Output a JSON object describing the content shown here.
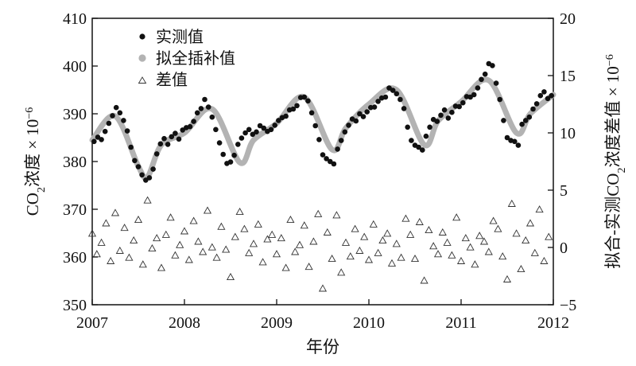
{
  "chart_data": {
    "type": "scatter",
    "xlabel": "年份",
    "ylabel_left": {
      "base": "CO",
      "sub": "2",
      "rest": "浓度 × 10",
      "sup": "−6"
    },
    "ylabel_right": {
      "pre": "拟合-实测CO",
      "sub": "2",
      "rest": "浓度差值 × 10",
      "sup": "−6"
    },
    "x_ticks": [
      "2007",
      "2008",
      "2009",
      "2010",
      "2011",
      "2012"
    ],
    "y_left_ticks": [
      "350",
      "360",
      "370",
      "380",
      "390",
      "400",
      "410"
    ],
    "y_right_ticks": [
      "−5",
      "0",
      "5",
      "10",
      "15",
      "20"
    ],
    "xlim": [
      2007,
      2012
    ],
    "ylim_left": [
      350,
      410
    ],
    "ylim_right": [
      -5,
      20
    ],
    "grid": false,
    "legend_position": "top-left",
    "legend": [
      "实测值",
      "拟全插补值",
      "差值"
    ],
    "series_colors": {
      "observed": "#111111",
      "fit": "#b3b3b3",
      "diff": "#333333"
    },
    "fit_curve": {
      "x": [
        2007.0,
        2007.25,
        2007.5,
        2007.6,
        2007.75,
        2008.0,
        2008.3,
        2008.6,
        2008.75,
        2009.0,
        2009.3,
        2009.6,
        2009.75,
        2010.0,
        2010.3,
        2010.6,
        2010.75,
        2011.0,
        2011.3,
        2011.6,
        2011.75,
        2012.0
      ],
      "y": [
        384.5,
        389.5,
        379.0,
        376.8,
        383.5,
        386.0,
        391.0,
        379.8,
        384.5,
        388.0,
        393.5,
        382.5,
        387.0,
        392.0,
        395.0,
        383.5,
        388.5,
        392.5,
        397.0,
        386.0,
        390.0,
        394.0
      ]
    },
    "observed": {
      "x": [
        2007.02,
        2007.06,
        2007.1,
        2007.14,
        2007.18,
        2007.22,
        2007.26,
        2007.3,
        2007.34,
        2007.38,
        2007.42,
        2007.46,
        2007.5,
        2007.54,
        2007.58,
        2007.62,
        2007.66,
        2007.7,
        2007.74,
        2007.78,
        2007.82,
        2007.86,
        2007.9,
        2007.94,
        2007.98,
        2008.02,
        2008.06,
        2008.1,
        2008.14,
        2008.18,
        2008.22,
        2008.26,
        2008.3,
        2008.34,
        2008.38,
        2008.42,
        2008.46,
        2008.5,
        2008.54,
        2008.58,
        2008.62,
        2008.66,
        2008.7,
        2008.74,
        2008.78,
        2008.82,
        2008.86,
        2008.9,
        2008.94,
        2008.98,
        2009.02,
        2009.06,
        2009.1,
        2009.14,
        2009.18,
        2009.22,
        2009.26,
        2009.3,
        2009.34,
        2009.38,
        2009.42,
        2009.46,
        2009.5,
        2009.54,
        2009.58,
        2009.62,
        2009.66,
        2009.7,
        2009.74,
        2009.78,
        2009.82,
        2009.86,
        2009.9,
        2009.94,
        2009.98,
        2010.02,
        2010.06,
        2010.1,
        2010.14,
        2010.18,
        2010.22,
        2010.26,
        2010.3,
        2010.34,
        2010.38,
        2010.42,
        2010.46,
        2010.5,
        2010.54,
        2010.58,
        2010.62,
        2010.66,
        2010.7,
        2010.74,
        2010.78,
        2010.82,
        2010.86,
        2010.9,
        2010.94,
        2010.98,
        2011.02,
        2011.06,
        2011.1,
        2011.14,
        2011.18,
        2011.22,
        2011.26,
        2011.3,
        2011.34,
        2011.38,
        2011.42,
        2011.46,
        2011.5,
        2011.54,
        2011.58,
        2011.62,
        2011.66,
        2011.7,
        2011.74,
        2011.78,
        2011.82,
        2011.86,
        2011.9,
        2011.94,
        2011.98
      ],
      "y": [
        384.2,
        385.1,
        384.6,
        386.3,
        388.0,
        389.6,
        391.3,
        390.2,
        388.6,
        386.4,
        383.0,
        380.2,
        378.9,
        377.2,
        376.1,
        376.6,
        378.4,
        381.6,
        383.7,
        384.8,
        383.6,
        385.2,
        385.9,
        384.7,
        386.6,
        387.1,
        387.3,
        388.4,
        390.2,
        391.1,
        393.0,
        391.4,
        389.3,
        386.7,
        383.9,
        381.5,
        379.6,
        379.9,
        381.3,
        383.6,
        384.9,
        386.0,
        386.7,
        385.7,
        386.2,
        387.5,
        387.0,
        386.3,
        386.7,
        387.6,
        388.6,
        389.2,
        389.5,
        390.8,
        391.0,
        391.7,
        393.4,
        393.5,
        392.7,
        390.2,
        387.5,
        384.6,
        381.4,
        380.6,
        380.0,
        379.5,
        382.6,
        384.4,
        386.2,
        387.6,
        388.9,
        388.5,
        390.0,
        389.4,
        390.4,
        391.3,
        391.4,
        392.6,
        393.3,
        393.5,
        395.4,
        394.9,
        394.2,
        393.0,
        391.1,
        387.2,
        384.4,
        383.4,
        383.0,
        382.4,
        385.3,
        387.2,
        388.8,
        388.4,
        389.7,
        390.8,
        389.1,
        390.3,
        391.6,
        391.5,
        392.3,
        393.6,
        393.5,
        394.0,
        395.4,
        397.2,
        398.3,
        400.5,
        400.1,
        396.4,
        393.0,
        388.6,
        385.0,
        384.4,
        384.2,
        383.4,
        387.8,
        388.6,
        389.3,
        391.0,
        392.1,
        393.8,
        394.6,
        393.2,
        393.8
      ]
    },
    "differences": {
      "x": [
        2007.0,
        2007.05,
        2007.1,
        2007.15,
        2007.2,
        2007.25,
        2007.3,
        2007.35,
        2007.4,
        2007.45,
        2007.5,
        2007.55,
        2007.6,
        2007.65,
        2007.7,
        2007.75,
        2007.8,
        2007.85,
        2007.9,
        2007.95,
        2008.0,
        2008.05,
        2008.1,
        2008.15,
        2008.2,
        2008.25,
        2008.3,
        2008.35,
        2008.4,
        2008.45,
        2008.5,
        2008.55,
        2008.6,
        2008.65,
        2008.7,
        2008.75,
        2008.8,
        2008.85,
        2008.9,
        2008.95,
        2009.0,
        2009.05,
        2009.1,
        2009.15,
        2009.2,
        2009.25,
        2009.3,
        2009.35,
        2009.4,
        2009.45,
        2009.5,
        2009.55,
        2009.6,
        2009.65,
        2009.7,
        2009.75,
        2009.8,
        2009.85,
        2009.9,
        2009.95,
        2010.0,
        2010.05,
        2010.1,
        2010.15,
        2010.2,
        2010.25,
        2010.3,
        2010.35,
        2010.4,
        2010.45,
        2010.5,
        2010.55,
        2010.6,
        2010.65,
        2010.7,
        2010.75,
        2010.8,
        2010.85,
        2010.9,
        2010.95,
        2011.0,
        2011.05,
        2011.1,
        2011.15,
        2011.2,
        2011.25,
        2011.3,
        2011.35,
        2011.4,
        2011.45,
        2011.5,
        2011.55,
        2011.6,
        2011.65,
        2011.7,
        2011.75,
        2011.8,
        2011.85,
        2011.9,
        2011.95
      ],
      "y": [
        1.2,
        -0.6,
        0.4,
        2.1,
        -1.2,
        3.0,
        -0.3,
        1.7,
        -0.9,
        0.6,
        2.4,
        -1.5,
        4.1,
        -0.1,
        0.8,
        -1.8,
        1.1,
        2.6,
        -0.7,
        0.2,
        1.4,
        -1.1,
        2.3,
        0.5,
        -0.4,
        3.2,
        0.0,
        -0.9,
        1.8,
        -0.2,
        -2.6,
        0.9,
        3.1,
        1.6,
        -0.5,
        0.3,
        2.0,
        -1.3,
        0.7,
        1.1,
        -0.6,
        0.8,
        -1.8,
        2.4,
        -0.4,
        0.2,
        1.9,
        -1.7,
        0.5,
        2.9,
        -3.6,
        1.3,
        -1.0,
        2.8,
        -2.2,
        0.4,
        -0.8,
        1.6,
        -0.3,
        0.9,
        -1.1,
        2.0,
        -0.5,
        0.6,
        1.2,
        -1.4,
        0.3,
        -0.9,
        2.5,
        1.1,
        -1.0,
        2.2,
        -2.9,
        1.5,
        0.1,
        -0.6,
        1.3,
        0.4,
        -0.7,
        2.6,
        -1.2,
        0.8,
        0.0,
        -1.5,
        1.0,
        0.5,
        -0.4,
        2.3,
        1.6,
        -0.8,
        -2.8,
        3.8,
        1.2,
        -1.9,
        0.6,
        2.1,
        -0.5,
        3.3,
        -1.2,
        0.9
      ]
    }
  }
}
